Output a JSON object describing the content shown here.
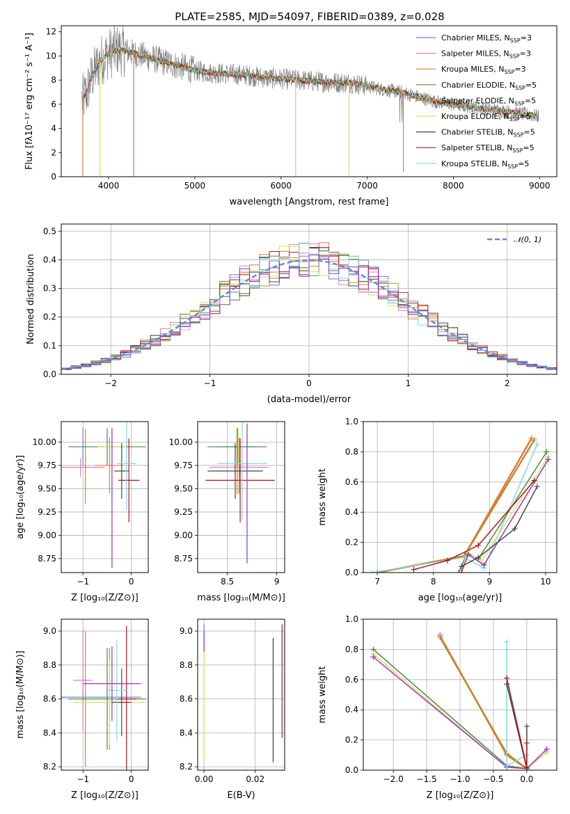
{
  "title": "PLATE=2585, MJD=54097, FIBERID=0389, z=0.028",
  "colors": {
    "Chabrier MILES": "#6b7fd7",
    "Salpeter MILES": "#e07cc0",
    "Kroupa MILES": "#c8862a",
    "Chabrier ELODIE": "#3f8f3f",
    "Salpeter ELODIE": "#e07a3c",
    "Kroupa ELODIE": "#d8e25a",
    "Chabrier STELIB": "#444444",
    "Salpeter STELIB": "#b0161b",
    "Kroupa STELIB": "#7fdcdc",
    "extra": "#9b2fc9",
    "data": "#808080",
    "normal": "#5b8ed8"
  },
  "chart_data": [
    {
      "type": "line",
      "name": "spectrum",
      "xlabel": "wavelength [Angstrom, rest frame]",
      "ylabel": "Flux [fλ10⁻¹⁷ erg cm⁻² s⁻¹ A⁻¹]",
      "xlim": [
        3450,
        9200
      ],
      "ylim": [
        0,
        12.5
      ],
      "xticks": [
        4000,
        5000,
        6000,
        7000,
        8000,
        9000
      ],
      "yticks": [
        0,
        2,
        4,
        6,
        8,
        10,
        12
      ],
      "legend_position": "top-right",
      "legend": [
        {
          "model": "Chabrier MILES",
          "label": "Chabrier MILES, N",
          "sub": "SSP",
          "suffix": "=3"
        },
        {
          "model": "Salpeter MILES",
          "label": "Salpeter MILES, N",
          "sub": "SSP",
          "suffix": "=3"
        },
        {
          "model": "Kroupa MILES",
          "label": "Kroupa MILES, N",
          "sub": "SSP",
          "suffix": "=3"
        },
        {
          "model": "Chabrier ELODIE",
          "label": "Chabrier ELODIE, N",
          "sub": "SSP",
          "suffix": "=5"
        },
        {
          "model": "Salpeter ELODIE",
          "label": "Salpeter ELODIE, N",
          "sub": "SSP",
          "suffix": "=5"
        },
        {
          "model": "Kroupa ELODIE",
          "label": "Kroupa ELODIE, N",
          "sub": "SSP",
          "suffix": "=5"
        },
        {
          "model": "Chabrier STELIB",
          "label": "Chabrier STELIB, N",
          "sub": "SSP",
          "suffix": "=5"
        },
        {
          "model": "Salpeter STELIB",
          "label": "Salpeter STELIB, N",
          "sub": "SSP",
          "suffix": "=5"
        },
        {
          "model": "Kroupa STELIB",
          "label": "Kroupa STELIB, N",
          "sub": "SSP",
          "suffix": "=5"
        }
      ],
      "continuum": {
        "x": [
          3700,
          3750,
          3800,
          3900,
          4000,
          4100,
          4200,
          4300,
          4400,
          4500,
          4600,
          4700,
          4800,
          5000,
          5200,
          5400,
          5600,
          5800,
          6000,
          6200,
          6400,
          6600,
          6800,
          7000,
          7200,
          7400,
          7600,
          7800,
          8000,
          8200,
          8400,
          8600,
          8800,
          9000
        ],
        "y": [
          6.4,
          7.0,
          8.2,
          9.6,
          10.2,
          10.5,
          10.4,
          10.2,
          10.0,
          9.8,
          9.6,
          9.4,
          9.2,
          8.8,
          8.6,
          8.5,
          8.4,
          8.2,
          8.1,
          8.0,
          7.9,
          7.8,
          7.8,
          7.5,
          7.2,
          7.0,
          6.6,
          6.2,
          6.0,
          5.8,
          5.6,
          5.4,
          5.2,
          5.0
        ]
      },
      "dropouts": [
        {
          "x": 3700,
          "y": 0
        },
        {
          "x": 3900,
          "y": 0
        },
        {
          "x": 4290,
          "y": 0
        },
        {
          "x": 6170,
          "y": 0
        },
        {
          "x": 6790,
          "y": 0
        },
        {
          "x": 7420,
          "y": 0.4
        }
      ]
    },
    {
      "type": "line",
      "name": "residual-distribution",
      "xlabel": "(data-model)/error",
      "ylabel": "Normed distribution",
      "xlim": [
        -2.5,
        2.5
      ],
      "ylim": [
        0,
        0.525
      ],
      "xticks": [
        -2,
        -1,
        0,
        1,
        2
      ],
      "yticks": [
        0.0,
        0.1,
        0.2,
        0.3,
        0.4,
        0.5
      ],
      "yticklabels": [
        "0.0",
        "0.1",
        "0.2",
        "0.3",
        "0.4",
        "0.5"
      ],
      "legend_position": "top-right",
      "legend_label": "𝒩(0, 1)",
      "bin_width": 0.1
    },
    {
      "type": "scatter",
      "name": "Z-vs-age",
      "xlabel": "Z [log₁₀(Z/Z⊙)]",
      "ylabel": "age  [log₁₀(age/yr)]",
      "xlim": [
        -1.45,
        0.35
      ],
      "ylim": [
        8.6,
        10.22
      ],
      "xticks": [
        -1,
        0
      ],
      "yticks": [
        8.75,
        9.0,
        9.25,
        9.5,
        9.75,
        10.0
      ],
      "yticklabels": [
        "8.75",
        "9.00",
        "9.25",
        "9.50",
        "9.75",
        "10.00"
      ],
      "points": [
        {
          "model": "Chabrier MILES",
          "x": -1.0,
          "xerr": 0.0,
          "y": 9.95,
          "yerr": 0.2
        },
        {
          "model": "Salpeter MILES",
          "x": -1.05,
          "xerr": 0.5,
          "y": 9.73,
          "yerr": 0.1
        },
        {
          "model": "Kroupa MILES",
          "x": -0.95,
          "xerr": 0.0,
          "y": 9.74,
          "yerr": 0.4
        },
        {
          "model": "Chabrier ELODIE",
          "x": -0.5,
          "xerr": 0.8,
          "y": 9.95,
          "yerr": 0.2
        },
        {
          "model": "Salpeter ELODIE",
          "x": -0.45,
          "xerr": 0.3,
          "y": 9.75,
          "yerr": 0.3
        },
        {
          "model": "Kroupa ELODIE",
          "x": -0.4,
          "xerr": 0.3,
          "y": 9.95,
          "yerr": 0.2
        },
        {
          "model": "Chabrier STELIB",
          "x": -0.2,
          "xerr": 0.15,
          "y": 9.69,
          "yerr": 0.3
        },
        {
          "model": "Salpeter STELIB",
          "x": -0.05,
          "xerr": 0.22,
          "y": 9.59,
          "yerr": 0.45
        },
        {
          "model": "Kroupa STELIB",
          "x": -0.1,
          "xerr": 0.2,
          "y": 9.77,
          "yerr": 0.5
        },
        {
          "model": "extra",
          "x": -0.4,
          "xerr": 0.0,
          "y": 9.4,
          "yerr": 0.75
        }
      ]
    },
    {
      "type": "scatter",
      "name": "mass-vs-age",
      "xlabel": "mass [log₁₀(M/M⊙)]",
      "ylabel": "",
      "xlim": [
        8.2,
        9.08
      ],
      "ylim": [
        8.6,
        10.22
      ],
      "xticks": [
        8.5,
        9.0
      ],
      "yticks": [
        8.75,
        9.0,
        9.25,
        9.5,
        9.75,
        10.0
      ],
      "yticklabels": [
        "8.75",
        "9.00",
        "9.25",
        "9.50",
        "9.75",
        "10.00"
      ],
      "points": [
        {
          "model": "Chabrier MILES",
          "x": 8.6,
          "xerr": 0.2,
          "y": 9.95,
          "yerr": 0.2
        },
        {
          "model": "Salpeter MILES",
          "x": 8.62,
          "xerr": 0.3,
          "y": 9.73,
          "yerr": 0.1
        },
        {
          "model": "Kroupa MILES",
          "x": 8.6,
          "xerr": 0.0,
          "y": 9.74,
          "yerr": 0.3
        },
        {
          "model": "Chabrier ELODIE",
          "x": 8.6,
          "xerr": 0.3,
          "y": 9.95,
          "yerr": 0.2
        },
        {
          "model": "Salpeter ELODIE",
          "x": 8.62,
          "xerr": 0.0,
          "y": 9.75,
          "yerr": 0.3
        },
        {
          "model": "Kroupa ELODIE",
          "x": 8.61,
          "xerr": 0.0,
          "y": 9.95,
          "yerr": 0.2
        },
        {
          "model": "Chabrier STELIB",
          "x": 8.58,
          "xerr": 0.28,
          "y": 9.69,
          "yerr": 0.3
        },
        {
          "model": "Salpeter STELIB",
          "x": 8.63,
          "xerr": 0.35,
          "y": 9.59,
          "yerr": 0.45
        },
        {
          "model": "Kroupa STELIB",
          "x": 8.65,
          "xerr": 0.25,
          "y": 9.77,
          "yerr": 0.6
        },
        {
          "model": "extra",
          "x": 8.7,
          "xerr": 0.0,
          "y": 9.45,
          "yerr": 0.75
        }
      ]
    },
    {
      "type": "line",
      "name": "age-mass-weight",
      "xlabel": "age  [log₁₀(age/yr)]",
      "ylabel": "mass weight",
      "xlim": [
        6.75,
        10.2
      ],
      "ylim": [
        0,
        1.0
      ],
      "xticks": [
        7,
        8,
        9,
        10
      ],
      "yticks": [
        0.0,
        0.2,
        0.4,
        0.6,
        0.8,
        1.0
      ],
      "yticklabels": [
        "0.0",
        "0.2",
        "0.4",
        "0.6",
        "0.8",
        "1.0"
      ],
      "series": [
        {
          "model": "Salpeter ELODIE",
          "x": [
            7.0,
            8.55,
            9.75
          ],
          "y": [
            0.0,
            0.11,
            0.89
          ]
        },
        {
          "model": "Kroupa MILES",
          "x": [
            7.0,
            8.55,
            9.8
          ],
          "y": [
            0.0,
            0.11,
            0.88
          ]
        },
        {
          "model": "Kroupa STELIB",
          "x": [
            6.9,
            8.55,
            8.9,
            9.85
          ],
          "y": [
            0.0,
            0.1,
            0.03,
            0.85
          ]
        },
        {
          "model": "Chabrier ELODIE",
          "x": [
            8.45,
            8.6,
            8.8,
            10.02
          ],
          "y": [
            0.0,
            0.13,
            0.09,
            0.8
          ]
        },
        {
          "model": "Kroupa ELODIE",
          "x": [
            8.5,
            8.6,
            8.85,
            10.05
          ],
          "y": [
            0.0,
            0.14,
            0.07,
            0.77
          ]
        },
        {
          "model": "extra",
          "x": [
            8.5,
            8.62,
            8.9,
            10.05
          ],
          "y": [
            0.0,
            0.12,
            0.05,
            0.75
          ]
        },
        {
          "model": "Salpeter STELIB",
          "x": [
            7.65,
            8.25,
            8.8,
            9.8
          ],
          "y": [
            0.02,
            0.08,
            0.18,
            0.61
          ]
        },
        {
          "model": "Chabrier STELIB",
          "x": [
            8.5,
            8.8,
            9.45,
            9.85
          ],
          "y": [
            0.04,
            0.1,
            0.29,
            0.57
          ]
        }
      ]
    },
    {
      "type": "scatter",
      "name": "Z-vs-mass",
      "xlabel": "Z [log₁₀(Z/Z⊙)]",
      "ylabel": "mass [log₁₀(M/M⊙)]",
      "xlim": [
        -1.45,
        0.35
      ],
      "ylim": [
        8.18,
        9.07
      ],
      "xticks": [
        -1,
        0
      ],
      "yticks": [
        8.2,
        8.4,
        8.6,
        8.8,
        9.0
      ],
      "yticklabels": [
        "8.2",
        "8.4",
        "8.6",
        "8.8",
        "9.0"
      ],
      "points": [
        {
          "model": "Chabrier MILES",
          "x": -1.0,
          "xerr": 1.2,
          "y": 8.61,
          "yerr": 0.03
        },
        {
          "model": "Salpeter MILES",
          "x": -1.0,
          "xerr": 0.2,
          "y": 8.71,
          "yerr": 0.3
        },
        {
          "model": "Kroupa MILES",
          "x": -0.95,
          "xerr": 0.0,
          "y": 8.6,
          "yerr": 0.4
        },
        {
          "model": "Chabrier ELODIE",
          "x": -0.5,
          "xerr": 0.8,
          "y": 8.6,
          "yerr": 0.3
        },
        {
          "model": "Salpeter ELODIE",
          "x": -0.45,
          "xerr": 0.0,
          "y": 8.6,
          "yerr": 0.3
        },
        {
          "model": "Kroupa ELODIE",
          "x": -0.45,
          "xerr": 0.75,
          "y": 8.58,
          "yerr": 0.25
        },
        {
          "model": "Chabrier STELIB",
          "x": -0.2,
          "xerr": 0.2,
          "y": 8.58,
          "yerr": 0.2
        },
        {
          "model": "Salpeter STELIB",
          "x": -0.1,
          "xerr": 0.2,
          "y": 8.6,
          "yerr": 0.43
        },
        {
          "model": "Kroupa STELIB",
          "x": -0.3,
          "xerr": 0.2,
          "y": 8.65,
          "yerr": 0.3
        },
        {
          "model": "extra",
          "x": -0.4,
          "xerr": 0.6,
          "y": 8.69,
          "yerr": 0.22
        }
      ]
    },
    {
      "type": "scatter",
      "name": "EBV-vs-mass",
      "xlabel": "E(B-V)",
      "ylabel": "",
      "xlim": [
        -0.0025,
        0.0315
      ],
      "ylim": [
        8.18,
        9.07
      ],
      "xticks": [
        0.0,
        0.02
      ],
      "xticklabels": [
        "0.00",
        "0.02"
      ],
      "yticks": [
        8.2,
        8.4,
        8.6,
        8.8,
        9.0
      ],
      "yticklabels": [
        "8.2",
        "8.4",
        "8.6",
        "8.8",
        "9.0"
      ],
      "points": [
        {
          "model": "Chabrier MILES",
          "x": 0.0,
          "y0": 8.87,
          "y1": 9.04
        },
        {
          "model": "Kroupa ELODIE",
          "x": 0.0,
          "y0": 8.25,
          "y1": 8.97
        },
        {
          "model": "extra",
          "x": 0.0,
          "y0": 8.88,
          "y1": 9.0
        },
        {
          "model": "Kroupa STELIB",
          "x": 0.027,
          "y0": 8.22,
          "y1": 8.95
        },
        {
          "model": "Chabrier STELIB",
          "x": 0.027,
          "y0": 8.23,
          "y1": 8.96
        },
        {
          "model": "Salpeter STELIB",
          "x": 0.0305,
          "y0": 8.37,
          "y1": 9.04
        }
      ]
    },
    {
      "type": "line",
      "name": "Z-mass-weight",
      "xlabel": "Z [log₁₀(Z/Z⊙)]",
      "ylabel": "mass weight",
      "xlim": [
        -2.45,
        0.45
      ],
      "ylim": [
        0,
        1.0
      ],
      "xticks": [
        -2.0,
        -1.5,
        -1.0,
        -0.5,
        0.0
      ],
      "xticklabels": [
        "−2.0",
        "−1.5",
        "−1.0",
        "−0.5",
        "0.0"
      ],
      "yticks": [
        0.0,
        0.2,
        0.4,
        0.6,
        0.8,
        1.0
      ],
      "yticklabels": [
        "0.0",
        "0.2",
        "0.4",
        "0.6",
        "0.8",
        "1.0"
      ],
      "series": [
        {
          "model": "Chabrier ELODIE",
          "x": [
            -2.3,
            -0.3,
            0.0,
            0.3
          ],
          "y": [
            0.8,
            0.03,
            0.01,
            0.12
          ]
        },
        {
          "model": "Kroupa ELODIE",
          "x": [
            -2.3,
            -0.3,
            0.0,
            0.3
          ],
          "y": [
            0.77,
            0.02,
            0.01,
            0.12
          ]
        },
        {
          "model": "extra",
          "x": [
            -2.3,
            -0.3,
            0.0,
            0.3
          ],
          "y": [
            0.75,
            0.02,
            0.01,
            0.14
          ]
        },
        {
          "model": "Salpeter ELODIE",
          "x": [
            -1.3,
            -0.3,
            0.0
          ],
          "y": [
            0.89,
            0.1,
            0.01
          ]
        },
        {
          "model": "Kroupa MILES",
          "x": [
            -1.3,
            -0.3,
            0.0
          ],
          "y": [
            0.88,
            0.11,
            0.01
          ]
        },
        {
          "model": "Salpeter MILES",
          "x": [
            -1.3
          ],
          "y": [
            0.9
          ]
        },
        {
          "model": "Kroupa STELIB",
          "x": [
            -0.3,
            -0.3,
            0.0
          ],
          "y": [
            0.85,
            0.03,
            0.1
          ]
        },
        {
          "model": "Chabrier STELIB",
          "x": [
            -0.3,
            0.0,
            0.0
          ],
          "y": [
            0.57,
            0.01,
            0.29
          ]
        },
        {
          "model": "Salpeter STELIB",
          "x": [
            -0.3,
            0.0,
            0.0
          ],
          "y": [
            0.61,
            0.02,
            0.18
          ]
        }
      ]
    }
  ]
}
